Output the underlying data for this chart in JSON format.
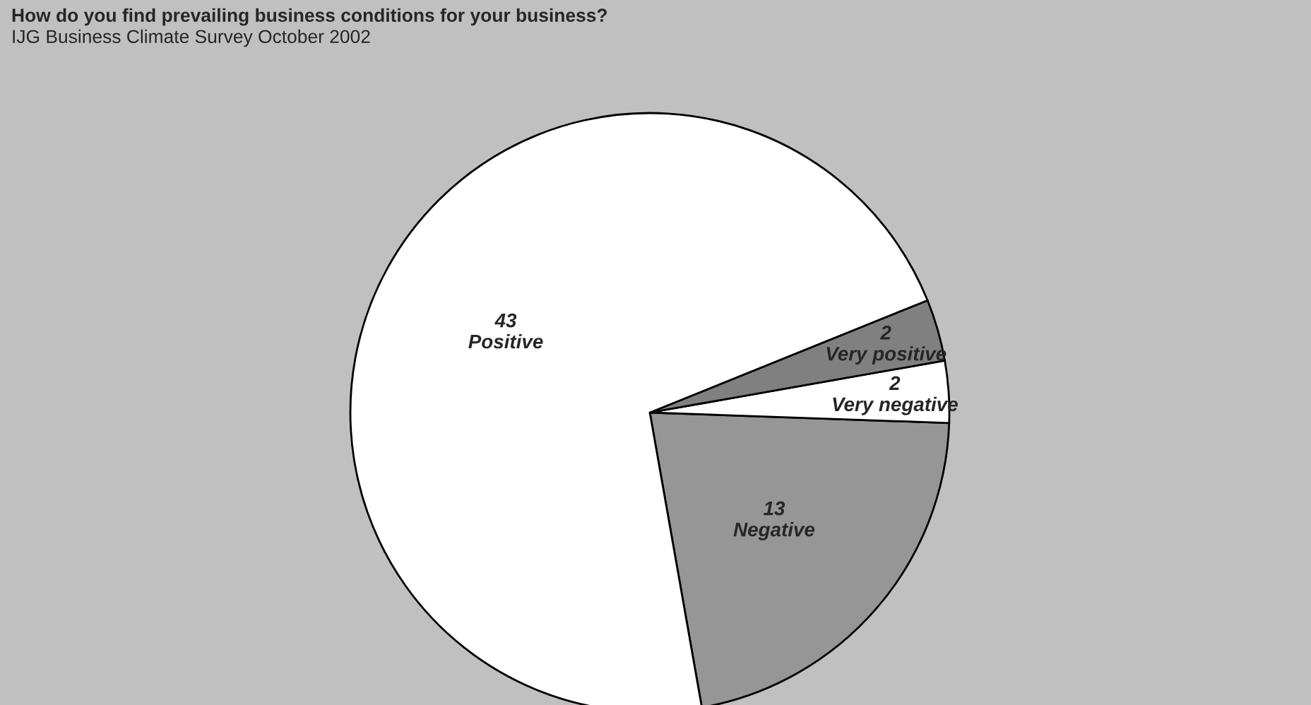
{
  "chart_data": {
    "type": "pie",
    "title": "How do you find prevailing business conditions for your business?",
    "subtitle": "IJG Business Climate Survey October 2002",
    "categories": [
      "Negative",
      "Very negative",
      "Very positive",
      "Positive"
    ],
    "values": [
      13,
      2,
      2,
      43
    ],
    "colors": [
      "#969696",
      "#ffffff",
      "#808080",
      "#ffffff"
    ],
    "data_labels": true,
    "legend": false
  }
}
